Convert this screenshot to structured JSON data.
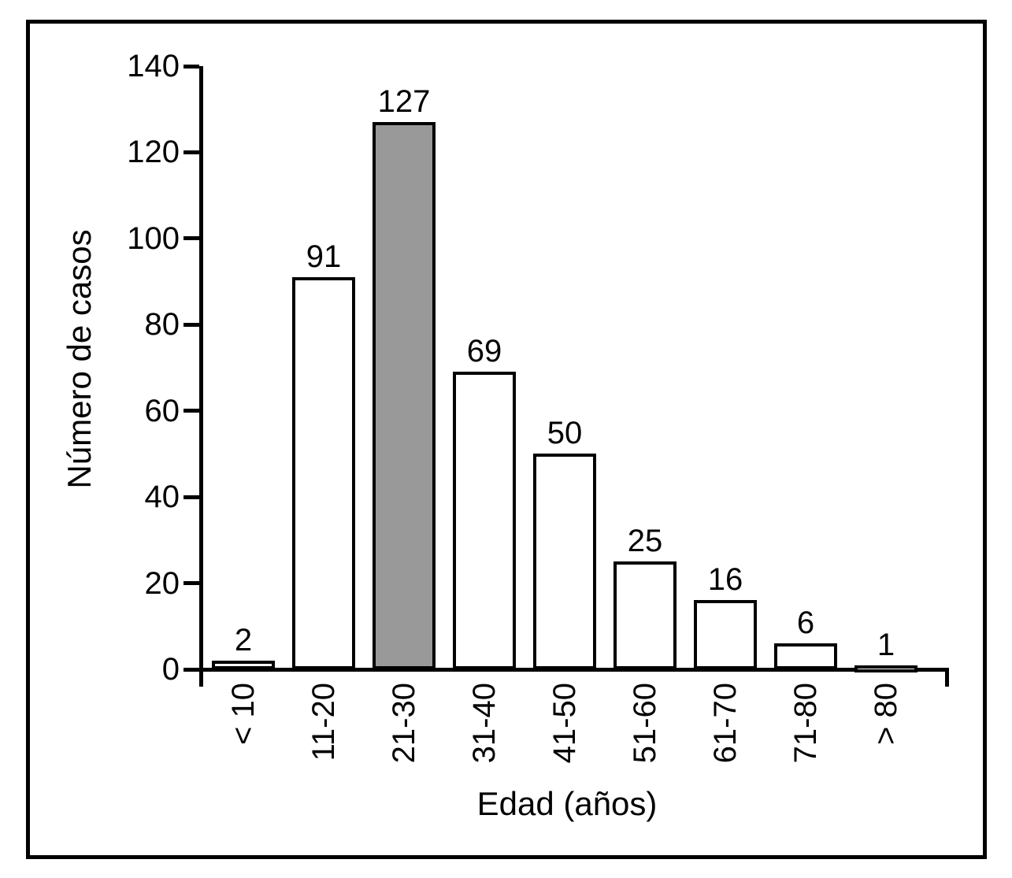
{
  "chart_data": {
    "type": "bar",
    "title": "",
    "categories": [
      "< 10",
      "11-20",
      "21-30",
      "31-40",
      "41-50",
      "51-60",
      "61-70",
      "71-80",
      "> 80"
    ],
    "values": [
      2,
      91,
      127,
      69,
      50,
      25,
      16,
      6,
      1
    ],
    "bar_colors": [
      "#ffffff",
      "#ffffff",
      "#999999",
      "#ffffff",
      "#ffffff",
      "#ffffff",
      "#ffffff",
      "#ffffff",
      "#ffffff"
    ],
    "highlighted_category": "21-30",
    "value_labels_shown": true,
    "xlabel": "Edad (años)",
    "ylabel": "Número de casos",
    "yticks": [
      0,
      20,
      40,
      60,
      80,
      100,
      120,
      140
    ],
    "ylim": [
      0,
      140
    ],
    "grid": false,
    "legend_position": "none",
    "x_tick_label_rotation_deg": 90,
    "colors": {
      "bar_fill_default": "#ffffff",
      "bar_fill_highlight": "#999999",
      "stroke": "#000000",
      "background": "#ffffff"
    }
  }
}
